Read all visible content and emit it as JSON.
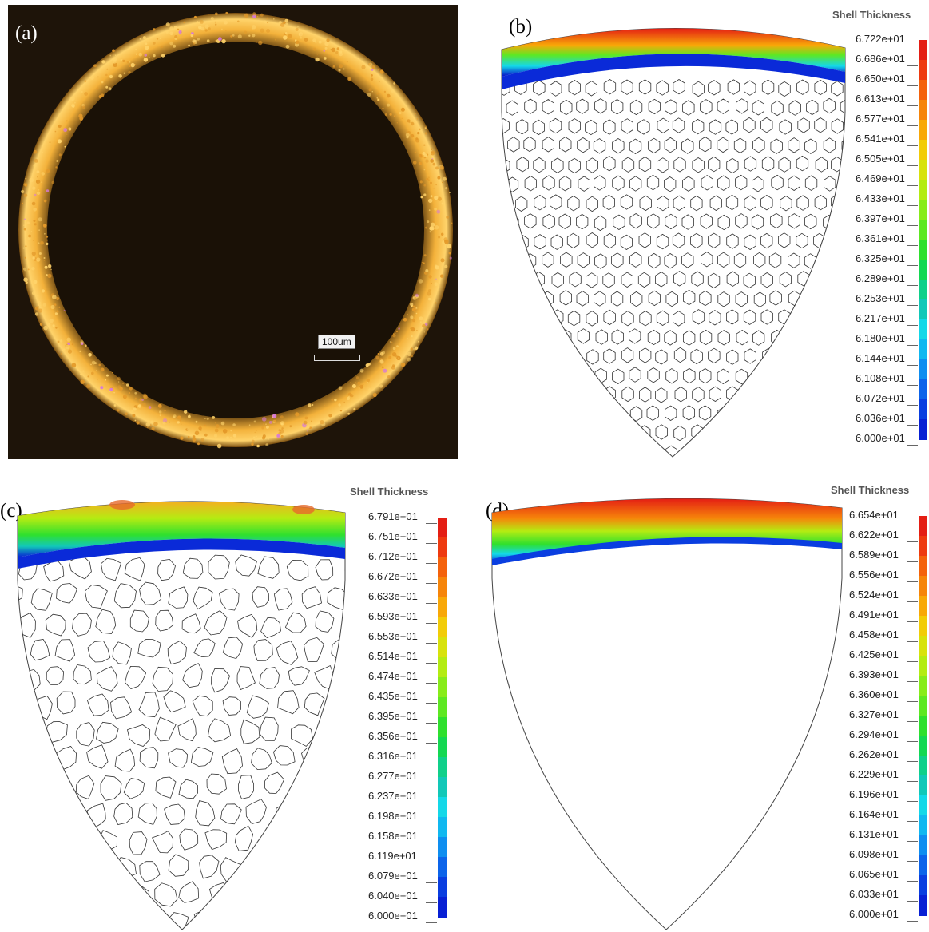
{
  "panels": {
    "a": {
      "label": "(a)",
      "scale_label": "100um"
    },
    "b": {
      "label": "(b)"
    },
    "c": {
      "label": "(c)"
    },
    "d": {
      "label": "(d)"
    }
  },
  "colorbars": [
    {
      "id": "b",
      "title": "Shell Thickness",
      "ticks": [
        "6.722e+01",
        "6.686e+01",
        "6.650e+01",
        "6.613e+01",
        "6.577e+01",
        "6.541e+01",
        "6.505e+01",
        "6.469e+01",
        "6.433e+01",
        "6.397e+01",
        "6.361e+01",
        "6.325e+01",
        "6.289e+01",
        "6.253e+01",
        "6.217e+01",
        "6.180e+01",
        "6.144e+01",
        "6.108e+01",
        "6.072e+01",
        "6.036e+01",
        "6.000e+01"
      ]
    },
    {
      "id": "c",
      "title": "Shell Thickness",
      "ticks": [
        "6.791e+01",
        "6.751e+01",
        "6.712e+01",
        "6.672e+01",
        "6.633e+01",
        "6.593e+01",
        "6.553e+01",
        "6.514e+01",
        "6.474e+01",
        "6.435e+01",
        "6.395e+01",
        "6.356e+01",
        "6.316e+01",
        "6.277e+01",
        "6.237e+01",
        "6.198e+01",
        "6.158e+01",
        "6.119e+01",
        "6.079e+01",
        "6.040e+01",
        "6.000e+01"
      ]
    },
    {
      "id": "d",
      "title": "Shell Thickness",
      "ticks": [
        "6.654e+01",
        "6.622e+01",
        "6.589e+01",
        "6.556e+01",
        "6.524e+01",
        "6.491e+01",
        "6.458e+01",
        "6.425e+01",
        "6.393e+01",
        "6.360e+01",
        "6.327e+01",
        "6.294e+01",
        "6.262e+01",
        "6.229e+01",
        "6.196e+01",
        "6.164e+01",
        "6.131e+01",
        "6.098e+01",
        "6.065e+01",
        "6.033e+01",
        "6.000e+01"
      ]
    }
  ],
  "colors": {
    "scale": [
      "#e41e14",
      "#ee3a10",
      "#f4620c",
      "#f6850a",
      "#f8a808",
      "#f2cc08",
      "#d8e20c",
      "#b4ec12",
      "#88ec1a",
      "#5ee822",
      "#2fe02e",
      "#14d852",
      "#10d08a",
      "#12c8b8",
      "#14d8e8",
      "#10b8f0",
      "#0e8ef0",
      "#0c64ea",
      "#0a3ee0",
      "#0820d4",
      "#0808c8"
    ],
    "photo_bg": "#1e1409",
    "photo_ring": "#f3b13a"
  }
}
